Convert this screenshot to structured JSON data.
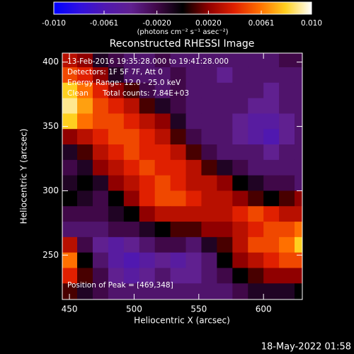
{
  "chart_data": {
    "type": "heatmap",
    "title": "Reconstructed RHESSI Image",
    "xlabel": "Heliocentric X (arcsec)",
    "ylabel": "Heliocentric Y (arcsec)",
    "annotations": [
      "13-Feb-2016 19:35:28.000 to 19:41:28.000",
      "Detectors: 1F 5F 7F, Att 0",
      "Energy Range: 12.0 - 25.0 keV",
      "Clean",
      "Total counts: 7.84E+03"
    ],
    "peak_label": "Position of Peak = [469,348]",
    "footer": "18-May-2022 01:58",
    "colorbar_label": "(photons cm⁻² s⁻¹ asec⁻²)",
    "clim": [
      -0.01,
      0.01
    ],
    "cticks": [
      {
        "value": -0.01,
        "label": "-0.010"
      },
      -0.0061,
      {
        "value": -0.002,
        "label": "-0.0020"
      },
      {
        "value": 0.002,
        "label": "0.0020"
      },
      0.0061,
      {
        "value": 0.01,
        "label": "0.010"
      }
    ],
    "colormap": [
      "#0000ff",
      "#3010e0",
      "#5018b0",
      "#602090",
      "#400848",
      "#000000",
      "#900000",
      "#e02000",
      "#ff7000",
      "#ffd020",
      "#ffffff"
    ],
    "xlim": [
      444.5,
      630
    ],
    "ylim": [
      215.5,
      407
    ],
    "xticks": [
      450,
      500,
      550,
      600
    ],
    "yticks": [
      250,
      300,
      350,
      400
    ],
    "x": [
      450,
      462,
      474,
      486,
      498,
      510,
      522,
      534,
      546,
      558,
      570,
      582,
      594,
      606,
      618,
      630
    ],
    "y": [
      402,
      390,
      378,
      366,
      354,
      342,
      330,
      318,
      306,
      294,
      282,
      270,
      258,
      246,
      234,
      222
    ],
    "z": [
      [
        0.003,
        0.002,
        -0.001,
        -0.002,
        -0.003,
        -0.003,
        -0.002,
        -0.003,
        -0.003,
        -0.003,
        -0.003,
        -0.003,
        -0.003,
        -0.003,
        -0.002,
        -0.002
      ],
      [
        0.005,
        0.004,
        0.002,
        -0.001,
        -0.003,
        -0.003,
        -0.003,
        -0.002,
        -0.003,
        -0.003,
        -0.004,
        -0.003,
        -0.003,
        -0.003,
        -0.003,
        -0.003
      ],
      [
        0.008,
        0.006,
        0.004,
        0.002,
        0.001,
        -0.002,
        -0.003,
        -0.002,
        -0.003,
        -0.003,
        -0.003,
        -0.003,
        -0.003,
        -0.004,
        -0.003,
        -0.003
      ],
      [
        0.009,
        0.007,
        0.005,
        0.004,
        0.003,
        0.001,
        -0.001,
        -0.002,
        -0.003,
        -0.003,
        -0.003,
        -0.003,
        -0.004,
        -0.004,
        -0.003,
        -0.003
      ],
      [
        0.008,
        0.006,
        0.005,
        0.005,
        0.004,
        0.003,
        0.002,
        -0.001,
        -0.003,
        -0.003,
        -0.003,
        -0.004,
        -0.005,
        -0.005,
        -0.004,
        -0.003
      ],
      [
        0.002,
        0.003,
        0.004,
        0.005,
        0.005,
        0.004,
        0.003,
        0.001,
        -0.002,
        -0.003,
        -0.003,
        -0.004,
        -0.005,
        -0.006,
        -0.004,
        -0.003
      ],
      [
        -0.001,
        0.001,
        0.003,
        0.004,
        0.005,
        0.004,
        0.004,
        0.003,
        0.001,
        -0.002,
        -0.003,
        -0.003,
        -0.003,
        -0.004,
        -0.003,
        -0.003
      ],
      [
        -0.002,
        -0.001,
        0.002,
        0.003,
        0.004,
        0.005,
        0.004,
        0.004,
        0.003,
        0.001,
        -0.001,
        -0.002,
        -0.003,
        -0.003,
        -0.003,
        -0.003
      ],
      [
        -0.001,
        0,
        -0.001,
        0.002,
        0.003,
        0.004,
        0.005,
        0.004,
        0.003,
        0.003,
        0.002,
        0,
        -0.001,
        -0.002,
        -0.002,
        -0.003
      ],
      [
        0,
        -0.001,
        -0.002,
        0,
        0.002,
        0.004,
        0.005,
        0.005,
        0.004,
        0.003,
        0.003,
        0.002,
        0.001,
        0,
        0.001,
        0.002
      ],
      [
        -0.002,
        -0.002,
        -0.002,
        -0.001,
        0,
        0.002,
        0.003,
        0.003,
        0.003,
        0.003,
        0.003,
        0.004,
        0.005,
        0.004,
        0.003,
        0.003
      ],
      [
        -0.003,
        -0.003,
        -0.003,
        -0.002,
        -0.002,
        -0.001,
        0,
        0.001,
        0.001,
        0.002,
        0.002,
        0.003,
        0.004,
        0.005,
        0.005,
        0.006
      ],
      [
        0.003,
        -0.002,
        -0.004,
        -0.005,
        -0.004,
        -0.003,
        -0.002,
        -0.002,
        -0.003,
        -0.001,
        0.001,
        0.003,
        0.005,
        0.005,
        0.006,
        0.008
      ],
      [
        0.006,
        0,
        -0.003,
        -0.005,
        -0.006,
        -0.005,
        -0.004,
        -0.005,
        -0.004,
        -0.003,
        0,
        0.002,
        0.003,
        0.004,
        0.005,
        0.005
      ],
      [
        0.004,
        0.001,
        -0.002,
        -0.004,
        -0.005,
        -0.004,
        -0.003,
        -0.004,
        -0.004,
        -0.003,
        -0.002,
        0,
        0.001,
        0.002,
        0.002,
        0.002
      ],
      [
        0.001,
        -0.001,
        -0.002,
        -0.003,
        -0.003,
        -0.003,
        -0.003,
        -0.003,
        -0.003,
        -0.003,
        -0.003,
        -0.002,
        -0.001,
        -0.001,
        -0.001,
        0
      ]
    ]
  }
}
